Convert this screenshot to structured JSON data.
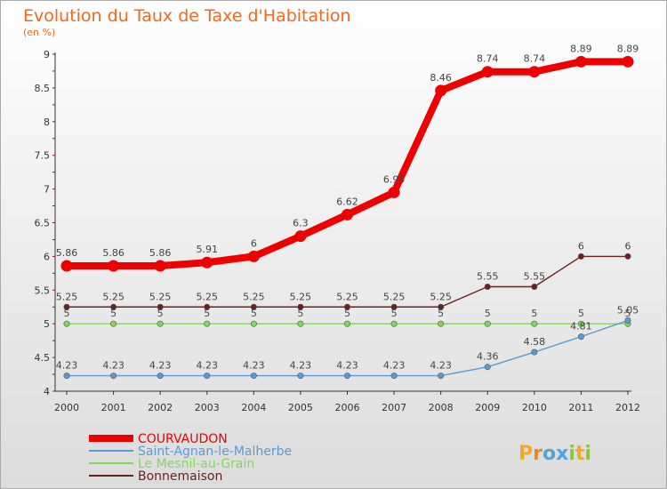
{
  "chart_data": {
    "type": "line",
    "title": "Evolution du Taux de Taxe d'Habitation",
    "subtitle": "(en %)",
    "x": [
      "2000",
      "2001",
      "2002",
      "2003",
      "2004",
      "2005",
      "2006",
      "2007",
      "2008",
      "2009",
      "2010",
      "2011",
      "2012"
    ],
    "ylim": [
      4,
      9
    ],
    "yticks": [
      "4",
      "4.5",
      "5",
      "5.5",
      "6",
      "6.5",
      "7",
      "7.5",
      "8",
      "8.5",
      "9"
    ],
    "grid": false,
    "legend_position": "bottom-left",
    "series": [
      {
        "name": "COURVAUDON",
        "color": "#ee0000",
        "values": [
          5.86,
          5.86,
          5.86,
          5.91,
          6,
          6.3,
          6.62,
          6.95,
          8.46,
          8.74,
          8.74,
          8.89,
          8.89
        ],
        "labels": [
          "5.86",
          "5.86",
          "5.86",
          "5.91",
          "6",
          "6.3",
          "6.62",
          "6.95",
          "8.46",
          "8.74",
          "8.74",
          "8.89",
          "8.89"
        ]
      },
      {
        "name": "Saint-Agnan-le-Malherbe",
        "color": "#5b9bd5",
        "values": [
          4.23,
          4.23,
          4.23,
          4.23,
          4.23,
          4.23,
          4.23,
          4.23,
          4.23,
          4.36,
          4.58,
          4.81,
          5.05
        ],
        "labels": [
          "4.23",
          "4.23",
          "4.23",
          "4.23",
          "4.23",
          "4.23",
          "4.23",
          "4.23",
          "4.23",
          "4.36",
          "4.58",
          "4.81",
          "5.05"
        ]
      },
      {
        "name": "Le Mesnil-au-Grain",
        "color": "#7ed957",
        "values": [
          5,
          5,
          5,
          5,
          5,
          5,
          5,
          5,
          5,
          5,
          5,
          5,
          5
        ],
        "labels": [
          "5",
          "5",
          "5",
          "5",
          "5",
          "5",
          "5",
          "5",
          "5",
          "5",
          "5",
          "5",
          "5"
        ]
      },
      {
        "name": "Bonnemaison",
        "color": "#6b1f1f",
        "values": [
          5.25,
          5.25,
          5.25,
          5.25,
          5.25,
          5.25,
          5.25,
          5.25,
          5.25,
          5.55,
          5.55,
          6,
          6
        ],
        "labels": [
          "5.25",
          "5.25",
          "5.25",
          "5.25",
          "5.25",
          "5.25",
          "5.25",
          "5.25",
          "5.25",
          "5.55",
          "5.55",
          "6",
          "6"
        ]
      }
    ]
  },
  "logo": {
    "text": "Proxiti"
  },
  "colors": {
    "title": "#f06a1a",
    "background_top": "#ffffff",
    "background_bottom": "#dcdcdc"
  }
}
